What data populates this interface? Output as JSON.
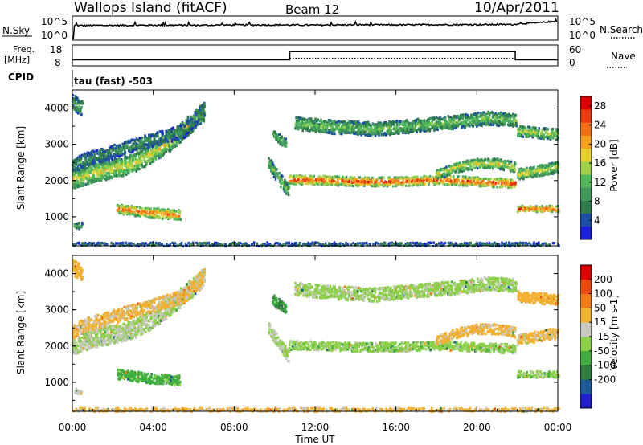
{
  "header": {
    "station": "Wallops Island (fitACF)",
    "beam": "Beam 12",
    "date": "10/Apr/2011"
  },
  "noise_panel": {
    "left_label": "N.Sky",
    "right_label": "N.Search",
    "ticks": [
      "10^5",
      "10^0"
    ]
  },
  "freq_panel": {
    "left_label_1": "Freq.",
    "left_label_2": "[MHz]",
    "left_ticks": [
      "18",
      "8"
    ],
    "right_label": "Nave",
    "right_ticks": [
      "60",
      "0"
    ]
  },
  "cpid_panel": {
    "label": "CPID",
    "value": "tau (fast) -503"
  },
  "x_axis": {
    "label": "Time UT",
    "ticks": [
      "00:00",
      "04:00",
      "08:00",
      "12:00",
      "16:00",
      "20:00",
      "00:00"
    ]
  },
  "chart_data": [
    {
      "type": "line",
      "title": "N.Sky",
      "x_range": [
        0,
        24
      ],
      "y_scale": "log",
      "ylim": [
        1,
        100000
      ],
      "y_tick_labels": [
        "10^0",
        "10^5"
      ],
      "series": [
        {
          "name": "N.Sky",
          "x": [
            0.0,
            0.08,
            0.1,
            2,
            4,
            6,
            8,
            10,
            12,
            14,
            16,
            18,
            20,
            21.9,
            22,
            23,
            23.5,
            24
          ],
          "values": [
            1,
            1,
            1200,
            1300,
            1500,
            1400,
            1600,
            1700,
            1500,
            1800,
            1700,
            1900,
            2000,
            2100,
            3500,
            5000,
            9000,
            12000
          ]
        }
      ]
    },
    {
      "type": "line",
      "title": "Freq. [MHz]",
      "x_range": [
        0,
        24
      ],
      "ylim": [
        8,
        18
      ],
      "y_ticks": [
        8,
        18
      ],
      "y2_label": "Nave",
      "y2_ticks": [
        0,
        60
      ],
      "series": [
        {
          "name": "Freq.",
          "x": [
            0,
            10.75,
            10.75,
            21.9,
            21.9,
            24
          ],
          "values": [
            10.5,
            10.5,
            15.2,
            15.2,
            10.5,
            10.5
          ]
        },
        {
          "name": "Nave",
          "x": [
            0,
            24
          ],
          "values": [
            20,
            20
          ]
        }
      ]
    },
    {
      "type": "heatmap",
      "title": "",
      "xlabel": "Time UT",
      "ylabel": "Slant Range [km]",
      "x_range": [
        0,
        24
      ],
      "ylim": [
        200,
        4500
      ],
      "y_ticks": [
        1000,
        2000,
        3000,
        4000
      ],
      "colorbar": {
        "label": "Power [dB]",
        "range": [
          0,
          30
        ],
        "ticks": [
          4,
          8,
          12,
          16,
          20,
          24,
          28
        ],
        "colors": [
          "#1820d8",
          "#1c4ea8",
          "#2f7a4a",
          "#3f9a5a",
          "#4fb95a",
          "#9ed04a",
          "#e8cf30",
          "#f5a020",
          "#f07018",
          "#e83a10",
          "#dc0000"
        ]
      },
      "features": [
        {
          "t": [
            0.0,
            1.0,
            2.0,
            3.0,
            4.0,
            5.0,
            6.0,
            6.5
          ],
          "range": [
            2050,
            2250,
            2350,
            2500,
            2800,
            3200,
            3700,
            3950
          ],
          "power": 16,
          "noise": 18
        },
        {
          "t": [
            0.0,
            0.5
          ],
          "range": [
            4200,
            4000
          ],
          "power": 10,
          "noise": 14
        },
        {
          "t": [
            0.0,
            0.5,
            1.5,
            3.0,
            5.5,
            6.5
          ],
          "range": [
            2400,
            2600,
            2750,
            3000,
            3400,
            4000
          ],
          "power": 8,
          "noise": 12
        },
        {
          "t": [
            2.2,
            3.0,
            3.6,
            4.3,
            5.3
          ],
          "range": [
            1250,
            1200,
            1150,
            1120,
            1080
          ],
          "power": 22,
          "noise": 8
        },
        {
          "t": [
            0.1,
            0.5
          ],
          "range": [
            800,
            780
          ],
          "power": 10,
          "noise": 4
        },
        {
          "t": [
            9.7,
            10.7
          ],
          "range": [
            2500,
            1700
          ],
          "power": 12,
          "noise": 10
        },
        {
          "t": [
            9.9,
            10.5
          ],
          "range": [
            3300,
            3050
          ],
          "power": 12,
          "noise": 8
        },
        {
          "t": [
            10.7,
            12.0,
            14.0,
            16.0,
            18.0,
            20.0,
            21.9
          ],
          "range": [
            2050,
            2050,
            2000,
            2000,
            2050,
            2000,
            1950
          ],
          "power": 24,
          "noise": 7
        },
        {
          "t": [
            11.0,
            13.0,
            15.0,
            17.0,
            19.0,
            20.5,
            21.9
          ],
          "range": [
            3600,
            3500,
            3450,
            3550,
            3650,
            3750,
            3700
          ],
          "power": 12,
          "noise": 12
        },
        {
          "t": [
            18.0,
            19.0,
            20.0,
            21.0,
            21.9
          ],
          "range": [
            2200,
            2400,
            2500,
            2500,
            2400
          ],
          "power": 16,
          "noise": 8
        },
        {
          "t": [
            22.0,
            24.0
          ],
          "range": [
            1250,
            1250
          ],
          "power": 24,
          "noise": 4
        },
        {
          "t": [
            22.0,
            23.0,
            24.0
          ],
          "range": [
            2200,
            2300,
            2400
          ],
          "power": 16,
          "noise": 9
        },
        {
          "t": [
            22.0,
            24.0
          ],
          "range": [
            3400,
            3300
          ],
          "power": 14,
          "noise": 9
        },
        {
          "t": [
            0.0,
            24.0
          ],
          "range": [
            260,
            260
          ],
          "power": 6,
          "noise": 2
        }
      ]
    },
    {
      "type": "heatmap",
      "title": "",
      "xlabel": "Time UT",
      "ylabel": "Slant Range [km]",
      "x_range": [
        0,
        24
      ],
      "ylim": [
        200,
        4500
      ],
      "y_ticks": [
        1000,
        2000,
        3000,
        4000
      ],
      "colorbar": {
        "label": "Velocity [m s-1]",
        "ticks": [
          200,
          100,
          50,
          15,
          -15,
          -50,
          -100,
          -200
        ],
        "colors": [
          "#2020c8",
          "#1c5a9a",
          "#2e7d3e",
          "#3fae3f",
          "#8cd04a",
          "#c8c8c0",
          "#f2b030",
          "#f07a18",
          "#e84a10",
          "#dc0000"
        ]
      },
      "features": [
        {
          "t": [
            0.0,
            1.0,
            2.0,
            3.0,
            4.0,
            5.0,
            6.0,
            6.5
          ],
          "range": [
            2050,
            2250,
            2350,
            2500,
            2800,
            3200,
            3700,
            3950
          ],
          "velocity": -15,
          "noise": 18
        },
        {
          "t": [
            0.0,
            0.5
          ],
          "range": [
            4200,
            4000
          ],
          "velocity": -80,
          "noise": 14
        },
        {
          "t": [
            0.0,
            0.5,
            1.5,
            3.0,
            5.5,
            6.5
          ],
          "range": [
            2400,
            2600,
            2750,
            3000,
            3400,
            4000
          ],
          "velocity": -60,
          "noise": 12
        },
        {
          "t": [
            2.2,
            3.0,
            3.6,
            4.3,
            5.3
          ],
          "range": [
            1250,
            1200,
            1150,
            1120,
            1080
          ],
          "velocity": 30,
          "noise": 8
        },
        {
          "t": [
            0.1,
            0.5
          ],
          "range": [
            800,
            780
          ],
          "velocity": -40,
          "noise": 4
        },
        {
          "t": [
            9.7,
            10.7
          ],
          "range": [
            2500,
            1700
          ],
          "velocity": -15,
          "noise": 10
        },
        {
          "t": [
            9.9,
            10.5
          ],
          "range": [
            3300,
            3050
          ],
          "velocity": 50,
          "noise": 8
        },
        {
          "t": [
            10.7,
            12.0,
            14.0,
            16.0,
            18.0,
            20.0,
            21.9
          ],
          "range": [
            2050,
            2050,
            2000,
            2000,
            2050,
            2000,
            1950
          ],
          "velocity": 0,
          "noise": 7
        },
        {
          "t": [
            11.0,
            13.0,
            15.0,
            17.0,
            19.0,
            20.5,
            21.9
          ],
          "range": [
            3600,
            3500,
            3450,
            3550,
            3650,
            3750,
            3700
          ],
          "velocity": -5,
          "noise": 12
        },
        {
          "t": [
            18.0,
            19.0,
            20.0,
            21.0,
            21.9
          ],
          "range": [
            2200,
            2400,
            2500,
            2500,
            2400
          ],
          "velocity": -60,
          "noise": 8
        },
        {
          "t": [
            22.0,
            24.0
          ],
          "range": [
            1250,
            1250
          ],
          "velocity": 0,
          "noise": 4
        },
        {
          "t": [
            22.0,
            23.0,
            24.0
          ],
          "range": [
            2200,
            2300,
            2400
          ],
          "velocity": -60,
          "noise": 9
        },
        {
          "t": [
            22.0,
            24.0
          ],
          "range": [
            3400,
            3300
          ],
          "velocity": -70,
          "noise": 9
        },
        {
          "t": [
            0.0,
            24.0
          ],
          "range": [
            260,
            260
          ],
          "velocity": -60,
          "noise": 2
        }
      ]
    }
  ]
}
